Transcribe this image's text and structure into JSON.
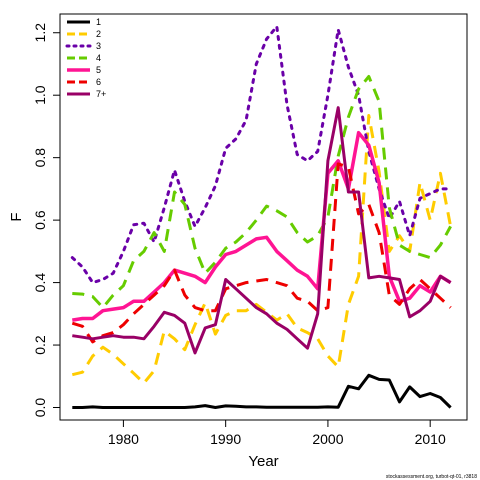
{
  "chart_data": {
    "type": "line",
    "title": "",
    "xlabel": "Year",
    "ylabel": "F",
    "xlim": [
      1973.8,
      2013.6
    ],
    "ylim": [
      -0.04,
      1.26
    ],
    "x_ticks": [
      "1980",
      "1990",
      "2000",
      "2010"
    ],
    "x_tick_values": [
      1980,
      1990,
      2000,
      2010
    ],
    "y_ticks": [
      "0.0",
      "0.2",
      "0.4",
      "0.6",
      "0.8",
      "1.0",
      "1.2"
    ],
    "y_tick_values": [
      0.0,
      0.2,
      0.4,
      0.6,
      0.8,
      1.0,
      1.2
    ],
    "legend_position": "top-left",
    "x": [
      1975,
      1976,
      1977,
      1978,
      1979,
      1980,
      1981,
      1982,
      1983,
      1984,
      1985,
      1986,
      1987,
      1988,
      1989,
      1990,
      1991,
      1992,
      1993,
      1994,
      1995,
      1996,
      1997,
      1998,
      1999,
      2000,
      2001,
      2002,
      2003,
      2004,
      2005,
      2006,
      2007,
      2008,
      2009,
      2010,
      2011,
      2012
    ],
    "series": [
      {
        "name": "1",
        "color": "#000000",
        "dash": "solid",
        "width": 3,
        "values": [
          0.0,
          0.0,
          0.002,
          0.0,
          0.0,
          0.0,
          0.0,
          0.0,
          0.0,
          0.0,
          0.0,
          0.0,
          0.002,
          0.006,
          0.0,
          0.005,
          0.004,
          0.002,
          0.002,
          0.001,
          0.001,
          0.001,
          0.001,
          0.001,
          0.001,
          0.002,
          0.001,
          0.068,
          0.06,
          0.103,
          0.09,
          0.088,
          0.018,
          0.066,
          0.035,
          0.045,
          0.032,
          0.0
        ]
      },
      {
        "name": "2",
        "color": "#ffcc00",
        "dash": "12 8",
        "width": 3,
        "values": [
          0.105,
          0.113,
          0.165,
          0.193,
          0.17,
          0.14,
          0.11,
          0.078,
          0.118,
          0.245,
          0.22,
          0.185,
          0.265,
          0.335,
          0.235,
          0.295,
          0.31,
          0.31,
          0.33,
          0.305,
          0.28,
          0.3,
          0.255,
          0.24,
          0.22,
          0.165,
          0.13,
          0.33,
          0.42,
          0.935,
          0.755,
          0.5,
          0.55,
          0.5,
          0.72,
          0.6,
          0.75,
          0.58
        ]
      },
      {
        "name": "3",
        "color": "#6a00a8",
        "dash": "3 6",
        "width": 3,
        "values": [
          0.48,
          0.45,
          0.4,
          0.41,
          0.43,
          0.5,
          0.585,
          0.59,
          0.53,
          0.64,
          0.76,
          0.66,
          0.58,
          0.64,
          0.71,
          0.83,
          0.86,
          0.92,
          1.1,
          1.18,
          1.22,
          0.97,
          0.81,
          0.79,
          0.82,
          1.0,
          1.21,
          1.09,
          1.0,
          0.82,
          0.7,
          0.605,
          0.66,
          0.55,
          0.67,
          0.685,
          0.7,
          0.7
        ]
      },
      {
        "name": "4",
        "color": "#66cc00",
        "dash": "12 8",
        "width": 3,
        "values": [
          0.365,
          0.363,
          0.355,
          0.32,
          0.36,
          0.39,
          0.47,
          0.5,
          0.56,
          0.5,
          0.69,
          0.65,
          0.51,
          0.43,
          0.465,
          0.51,
          0.53,
          0.56,
          0.6,
          0.645,
          0.63,
          0.61,
          0.56,
          0.53,
          0.55,
          0.61,
          0.805,
          0.93,
          1.02,
          1.06,
          0.98,
          0.64,
          0.52,
          0.5,
          0.49,
          0.48,
          0.52,
          0.58
        ]
      },
      {
        "name": "5",
        "color": "#ff1493",
        "dash": "solid",
        "width": 3.5,
        "values": [
          0.28,
          0.285,
          0.285,
          0.31,
          0.315,
          0.32,
          0.34,
          0.34,
          0.37,
          0.4,
          0.44,
          0.43,
          0.42,
          0.4,
          0.45,
          0.49,
          0.5,
          0.52,
          0.54,
          0.545,
          0.5,
          0.47,
          0.44,
          0.42,
          0.38,
          0.75,
          0.79,
          0.7,
          0.88,
          0.84,
          0.72,
          0.42,
          0.34,
          0.35,
          0.39,
          0.37,
          0.42,
          0.4
        ]
      },
      {
        "name": "6",
        "color": "#ee0000",
        "dash": "12 8",
        "width": 3,
        "values": [
          0.27,
          0.26,
          0.21,
          0.23,
          0.24,
          0.265,
          0.3,
          0.33,
          0.36,
          0.39,
          0.44,
          0.36,
          0.32,
          0.31,
          0.31,
          0.38,
          0.39,
          0.4,
          0.405,
          0.41,
          0.4,
          0.39,
          0.35,
          0.34,
          0.31,
          0.32,
          0.78,
          0.77,
          0.62,
          0.65,
          0.56,
          0.36,
          0.33,
          0.38,
          0.41,
          0.38,
          0.35,
          0.32
        ]
      },
      {
        "name": "7+",
        "color": "#990066",
        "dash": "solid",
        "width": 3,
        "values": [
          0.23,
          0.225,
          0.22,
          0.225,
          0.23,
          0.225,
          0.225,
          0.22,
          0.26,
          0.305,
          0.295,
          0.27,
          0.175,
          0.255,
          0.265,
          0.41,
          0.38,
          0.35,
          0.32,
          0.3,
          0.27,
          0.25,
          0.22,
          0.19,
          0.3,
          0.79,
          0.96,
          0.69,
          0.69,
          0.415,
          0.42,
          0.415,
          0.41,
          0.29,
          0.31,
          0.34,
          0.42,
          0.4
        ]
      }
    ]
  },
  "footer": "stockassessment.org, turbot-qt-01, r3818"
}
